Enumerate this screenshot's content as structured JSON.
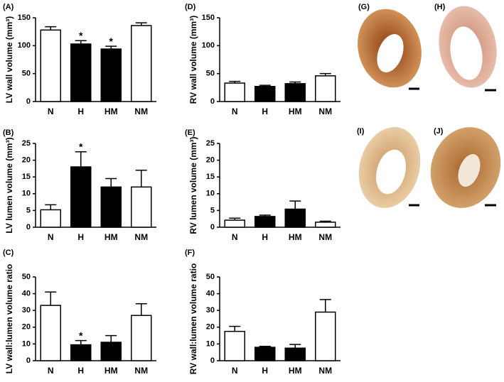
{
  "chart_data": [
    {
      "type": "bar",
      "panel_label": "(A)",
      "y_label": "LV wall volume (mm³)",
      "categories": [
        "N",
        "H",
        "HM",
        "NM"
      ],
      "values": [
        128,
        103,
        94,
        136
      ],
      "errors": [
        6,
        6,
        5,
        5
      ],
      "colors": [
        "#ffffff",
        "#000000",
        "#000000",
        "#ffffff"
      ],
      "markers": [
        null,
        "*",
        "*",
        null
      ],
      "ylim": [
        0,
        150
      ],
      "yticks": [
        0,
        50,
        100,
        150
      ]
    },
    {
      "type": "bar",
      "panel_label": "(B)",
      "y_label": "LV lumen volume (mm³)",
      "categories": [
        "N",
        "H",
        "HM",
        "NM"
      ],
      "values": [
        5.2,
        18,
        12,
        12
      ],
      "errors": [
        1.5,
        4.5,
        2.5,
        5
      ],
      "colors": [
        "#ffffff",
        "#000000",
        "#000000",
        "#ffffff"
      ],
      "markers": [
        null,
        "*",
        null,
        null
      ],
      "ylim": [
        0,
        25
      ],
      "yticks": [
        0,
        5,
        10,
        15,
        20,
        25
      ]
    },
    {
      "type": "bar",
      "panel_label": "(C)",
      "y_label": "LV wall:lumen volume ratio",
      "categories": [
        "N",
        "H",
        "HM",
        "NM"
      ],
      "values": [
        33,
        9.5,
        11,
        27
      ],
      "errors": [
        8,
        2.5,
        4,
        7
      ],
      "colors": [
        "#ffffff",
        "#000000",
        "#000000",
        "#ffffff"
      ],
      "markers": [
        null,
        "*",
        null,
        null
      ],
      "ylim": [
        0,
        50
      ],
      "yticks": [
        0,
        10,
        20,
        30,
        40,
        50
      ]
    },
    {
      "type": "bar",
      "panel_label": "(D)",
      "y_label": "RV wall volume (mm³)",
      "categories": [
        "N",
        "H",
        "HM",
        "NM"
      ],
      "values": [
        33,
        27,
        32,
        46
      ],
      "errors": [
        3,
        2,
        3,
        4
      ],
      "colors": [
        "#ffffff",
        "#000000",
        "#000000",
        "#ffffff"
      ],
      "markers": [
        null,
        null,
        null,
        null
      ],
      "ylim": [
        0,
        150
      ],
      "yticks": [
        0,
        50,
        100,
        150
      ]
    },
    {
      "type": "bar",
      "panel_label": "(E)",
      "y_label": "RV lumen volume (mm³)",
      "categories": [
        "N",
        "H",
        "HM",
        "NM"
      ],
      "values": [
        2.1,
        3.2,
        5.4,
        1.5
      ],
      "errors": [
        0.6,
        0.4,
        2.4,
        0.3
      ],
      "colors": [
        "#ffffff",
        "#000000",
        "#000000",
        "#ffffff"
      ],
      "markers": [
        null,
        null,
        null,
        null
      ],
      "ylim": [
        0,
        25
      ],
      "yticks": [
        0,
        5,
        10,
        15,
        20,
        25
      ]
    },
    {
      "type": "bar",
      "panel_label": "(F)",
      "y_label": "RV wall:lumen volume ratio",
      "categories": [
        "N",
        "H",
        "HM",
        "NM"
      ],
      "values": [
        17.5,
        8,
        7.5,
        29
      ],
      "errors": [
        3,
        0.6,
        2.2,
        7.5
      ],
      "colors": [
        "#ffffff",
        "#000000",
        "#000000",
        "#ffffff"
      ],
      "markers": [
        null,
        null,
        null,
        null
      ],
      "ylim": [
        0,
        50
      ],
      "yticks": [
        0,
        10,
        20,
        30,
        40,
        50
      ]
    }
  ],
  "photo_panels": [
    {
      "label": "(G)"
    },
    {
      "label": "(H)"
    },
    {
      "label": "(I)"
    },
    {
      "label": "(J)"
    }
  ]
}
